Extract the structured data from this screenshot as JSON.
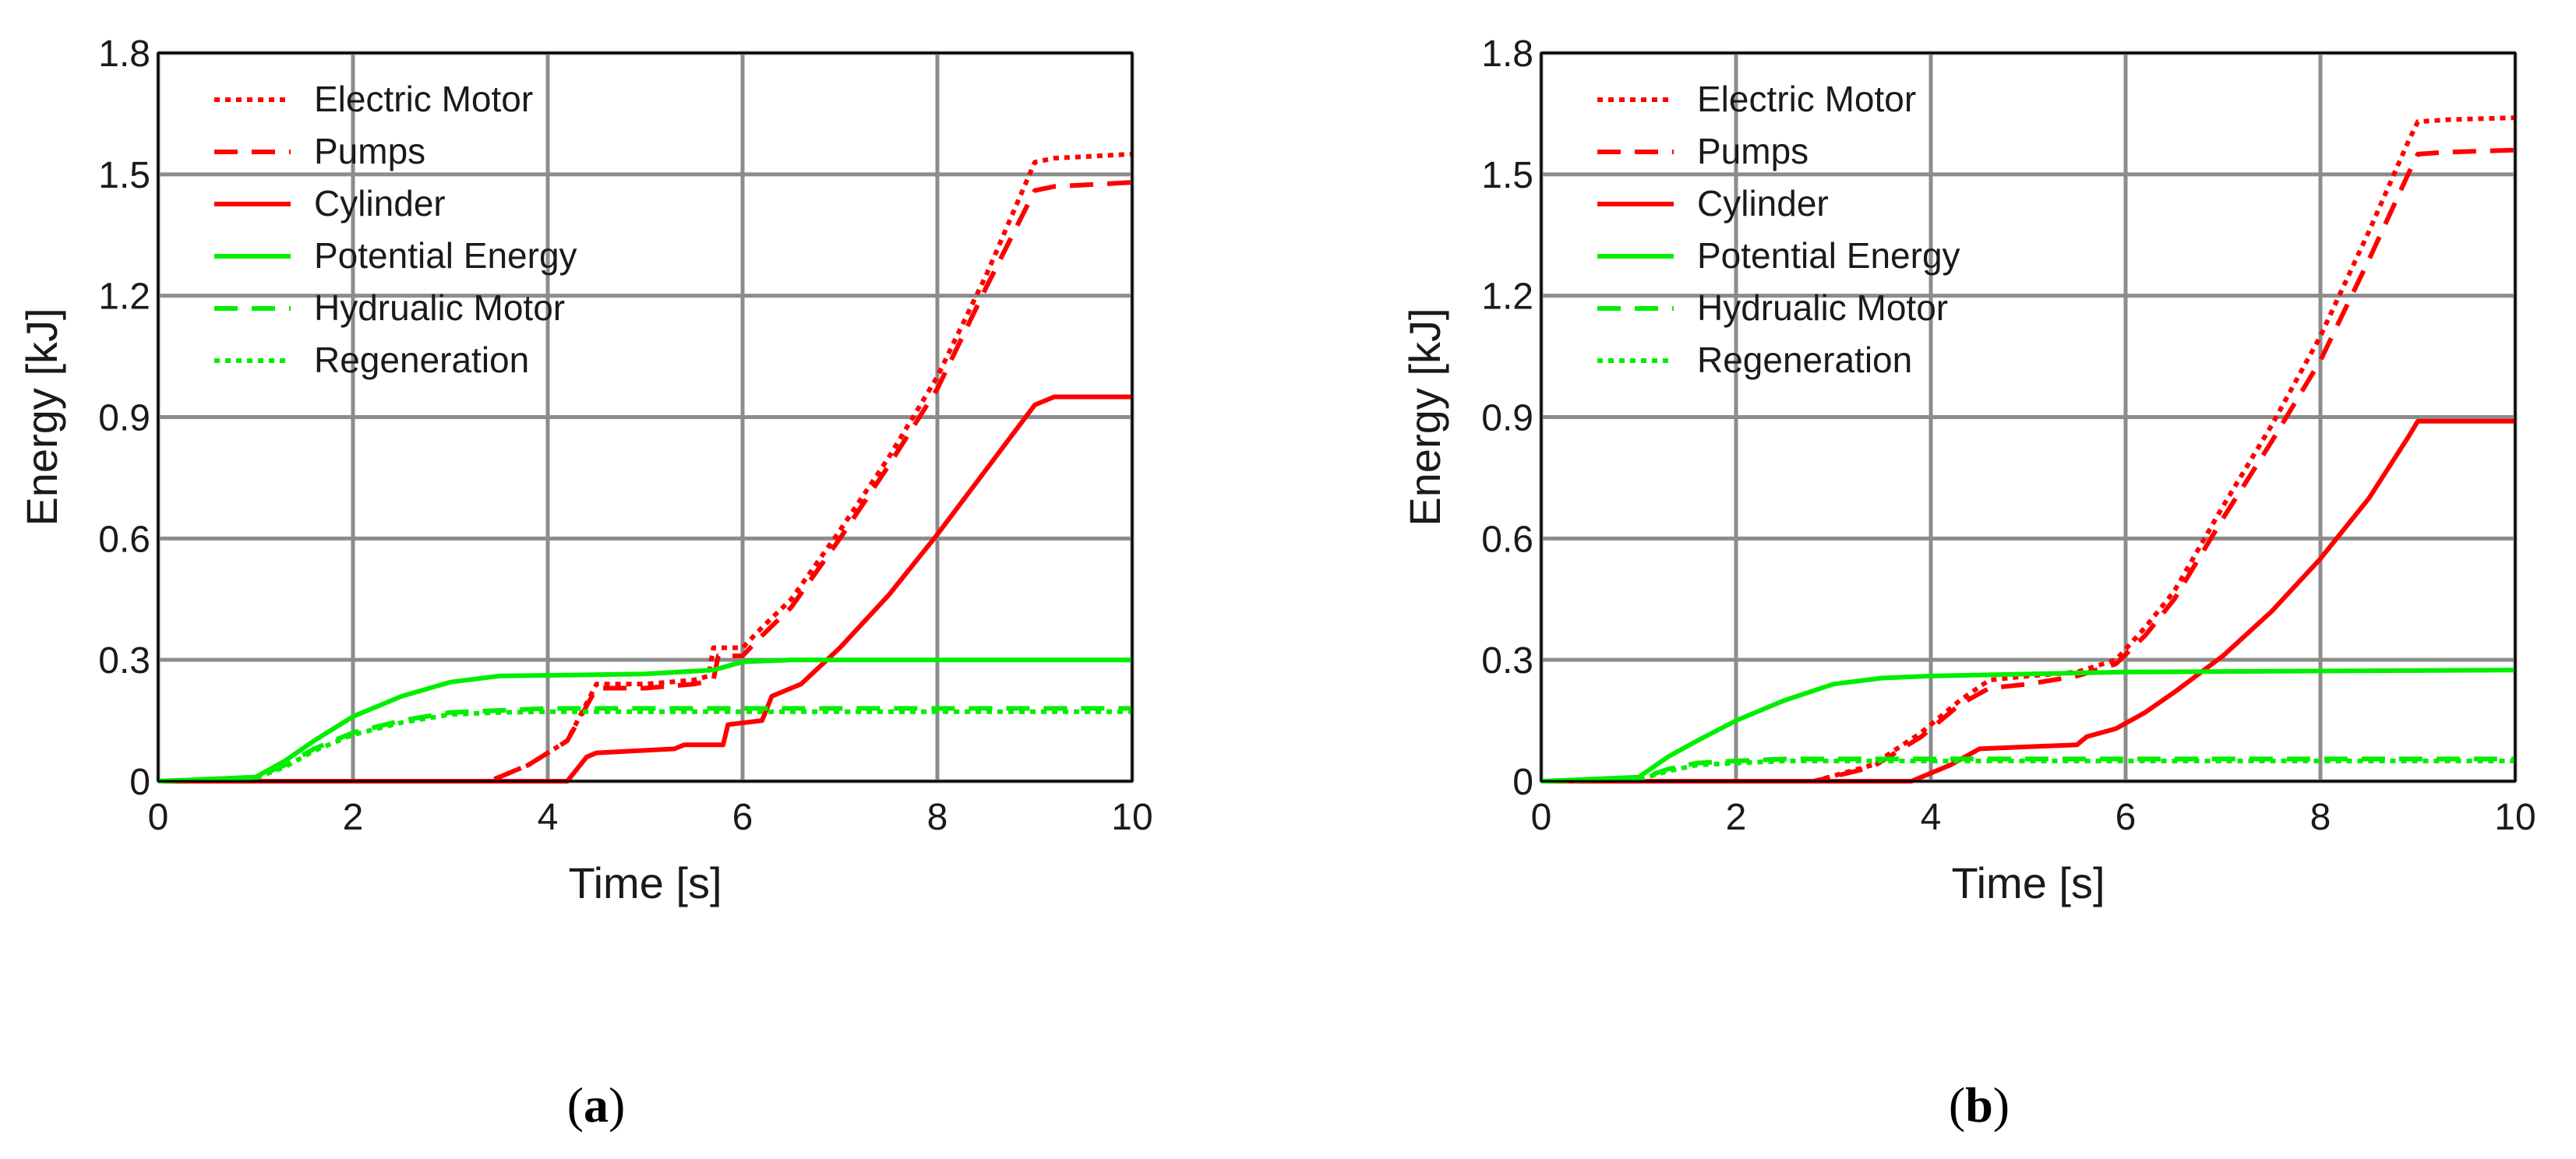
{
  "chart_data": [
    {
      "type": "line",
      "panel": "a",
      "caption_letter": "a",
      "xlabel": "Time [s]",
      "ylabel": "Energy [kJ]",
      "xlim": [
        0,
        10
      ],
      "ylim": [
        0,
        1.8
      ],
      "xticks": [
        0,
        2,
        4,
        6,
        8,
        10
      ],
      "xtick_labels": [
        "0",
        "2",
        "4",
        "6",
        "8",
        "10"
      ],
      "yticks": [
        0,
        0.3,
        0.6,
        0.9,
        1.2,
        1.5,
        1.8
      ],
      "ytick_labels": [
        "0",
        "0.3",
        "0.6",
        "0.9",
        "1.2",
        "1.5",
        "1.8"
      ],
      "grid": true,
      "legend_position": "top-left",
      "series": [
        {
          "name": "Electric Motor",
          "color": "#ff0000",
          "style": "dotted",
          "x": [
            0,
            3.4,
            3.8,
            4.2,
            4.5,
            5.0,
            5.5,
            5.65,
            5.7,
            6.0,
            6.2,
            6.5,
            7.0,
            7.5,
            8.0,
            8.5,
            9.0,
            9.2,
            10.0
          ],
          "y": [
            0,
            0,
            0.04,
            0.1,
            0.24,
            0.24,
            0.25,
            0.26,
            0.33,
            0.33,
            0.38,
            0.45,
            0.62,
            0.8,
            1.0,
            1.25,
            1.53,
            1.54,
            1.55
          ]
        },
        {
          "name": "Pumps",
          "color": "#ff0000",
          "style": "dashed",
          "x": [
            0,
            3.4,
            3.8,
            4.2,
            4.5,
            5.0,
            5.5,
            5.7,
            5.75,
            6.0,
            6.2,
            6.5,
            7.0,
            7.5,
            8.0,
            8.5,
            9.0,
            9.2,
            10.0
          ],
          "y": [
            0,
            0,
            0.04,
            0.1,
            0.23,
            0.23,
            0.24,
            0.25,
            0.31,
            0.31,
            0.36,
            0.43,
            0.6,
            0.78,
            0.97,
            1.22,
            1.46,
            1.47,
            1.48
          ]
        },
        {
          "name": "Cylinder",
          "color": "#ff0000",
          "style": "solid",
          "x": [
            0,
            4.2,
            4.4,
            4.5,
            5.3,
            5.4,
            5.8,
            5.85,
            6.2,
            6.3,
            6.6,
            7.0,
            7.5,
            8.0,
            8.5,
            9.0,
            9.2,
            10.0
          ],
          "y": [
            0,
            0,
            0.06,
            0.07,
            0.08,
            0.09,
            0.09,
            0.14,
            0.15,
            0.21,
            0.24,
            0.33,
            0.46,
            0.61,
            0.77,
            0.93,
            0.95,
            0.95
          ]
        },
        {
          "name": "Potential Energy",
          "color": "#00ee00",
          "style": "solid",
          "x": [
            0,
            1.0,
            1.3,
            1.6,
            2.0,
            2.5,
            3.0,
            3.5,
            5.0,
            5.7,
            6.0,
            6.5,
            10.0
          ],
          "y": [
            0,
            0.01,
            0.05,
            0.1,
            0.16,
            0.21,
            0.245,
            0.26,
            0.265,
            0.275,
            0.295,
            0.3,
            0.3
          ]
        },
        {
          "name": "Hydrualic Motor",
          "color": "#00ee00",
          "style": "dashed",
          "x": [
            0,
            1.0,
            1.3,
            1.6,
            2.0,
            2.5,
            3.0,
            3.5,
            4.0,
            10.0
          ],
          "y": [
            0,
            0.01,
            0.04,
            0.08,
            0.12,
            0.15,
            0.17,
            0.175,
            0.18,
            0.18
          ]
        },
        {
          "name": "Regeneration",
          "color": "#00ee00",
          "style": "dotted",
          "x": [
            0,
            1.0,
            1.3,
            1.6,
            2.0,
            2.5,
            3.0,
            3.5,
            4.0,
            10.0
          ],
          "y": [
            0,
            0.008,
            0.035,
            0.075,
            0.115,
            0.145,
            0.165,
            0.17,
            0.172,
            0.172
          ]
        }
      ]
    },
    {
      "type": "line",
      "panel": "b",
      "caption_letter": "b",
      "xlabel": "Time [s]",
      "ylabel": "Energy [kJ]",
      "xlim": [
        0,
        10
      ],
      "ylim": [
        0,
        1.8
      ],
      "xticks": [
        0,
        2,
        4,
        6,
        8,
        10
      ],
      "xtick_labels": [
        "0",
        "2",
        "4",
        "6",
        "8",
        "10"
      ],
      "yticks": [
        0,
        0.3,
        0.6,
        0.9,
        1.2,
        1.5,
        1.8
      ],
      "ytick_labels": [
        "0",
        "0.3",
        "0.6",
        "0.9",
        "1.2",
        "1.5",
        "1.8"
      ],
      "grid": true,
      "legend_position": "top-left",
      "series": [
        {
          "name": "Electric Motor",
          "color": "#ff0000",
          "style": "dotted",
          "x": [
            0,
            2.8,
            3.4,
            3.9,
            4.3,
            4.6,
            5.0,
            5.5,
            5.9,
            6.2,
            6.5,
            7.0,
            7.5,
            8.0,
            8.5,
            8.9,
            9.0,
            9.3,
            10.0
          ],
          "y": [
            0,
            0,
            0.04,
            0.12,
            0.2,
            0.25,
            0.26,
            0.27,
            0.3,
            0.38,
            0.47,
            0.68,
            0.88,
            1.1,
            1.36,
            1.58,
            1.63,
            1.635,
            1.64
          ]
        },
        {
          "name": "Pumps",
          "color": "#ff0000",
          "style": "dashed",
          "x": [
            0,
            2.8,
            3.4,
            3.9,
            4.3,
            4.6,
            5.0,
            5.5,
            5.9,
            6.2,
            6.5,
            7.0,
            7.5,
            8.0,
            8.5,
            8.9,
            9.0,
            9.3,
            10.0
          ],
          "y": [
            0,
            0,
            0.035,
            0.11,
            0.19,
            0.23,
            0.24,
            0.26,
            0.29,
            0.36,
            0.45,
            0.65,
            0.84,
            1.04,
            1.29,
            1.5,
            1.55,
            1.555,
            1.56
          ]
        },
        {
          "name": "Cylinder",
          "color": "#ff0000",
          "style": "solid",
          "x": [
            0,
            3.8,
            4.2,
            4.5,
            5.0,
            5.5,
            5.6,
            5.9,
            6.2,
            6.5,
            7.0,
            7.5,
            8.0,
            8.5,
            8.9,
            9.0,
            10.0
          ],
          "y": [
            0,
            0,
            0.04,
            0.08,
            0.085,
            0.09,
            0.11,
            0.13,
            0.17,
            0.22,
            0.31,
            0.42,
            0.55,
            0.7,
            0.85,
            0.89,
            0.89
          ]
        },
        {
          "name": "Potential Energy",
          "color": "#00ee00",
          "style": "solid",
          "x": [
            0,
            1.0,
            1.3,
            1.6,
            2.0,
            2.5,
            3.0,
            3.5,
            4.0,
            6.0,
            10.0
          ],
          "y": [
            0,
            0.01,
            0.06,
            0.1,
            0.15,
            0.2,
            0.24,
            0.255,
            0.26,
            0.27,
            0.275
          ]
        },
        {
          "name": "Hydrualic Motor",
          "color": "#00ee00",
          "style": "dashed",
          "x": [
            0,
            1.0,
            1.3,
            1.6,
            2.0,
            2.5,
            10.0
          ],
          "y": [
            0,
            0.005,
            0.03,
            0.045,
            0.05,
            0.055,
            0.055
          ]
        },
        {
          "name": "Regeneration",
          "color": "#00ee00",
          "style": "dotted",
          "x": [
            0,
            1.0,
            1.3,
            1.6,
            2.0,
            2.5,
            10.0
          ],
          "y": [
            0,
            0.004,
            0.025,
            0.04,
            0.045,
            0.05,
            0.05
          ]
        }
      ]
    }
  ]
}
